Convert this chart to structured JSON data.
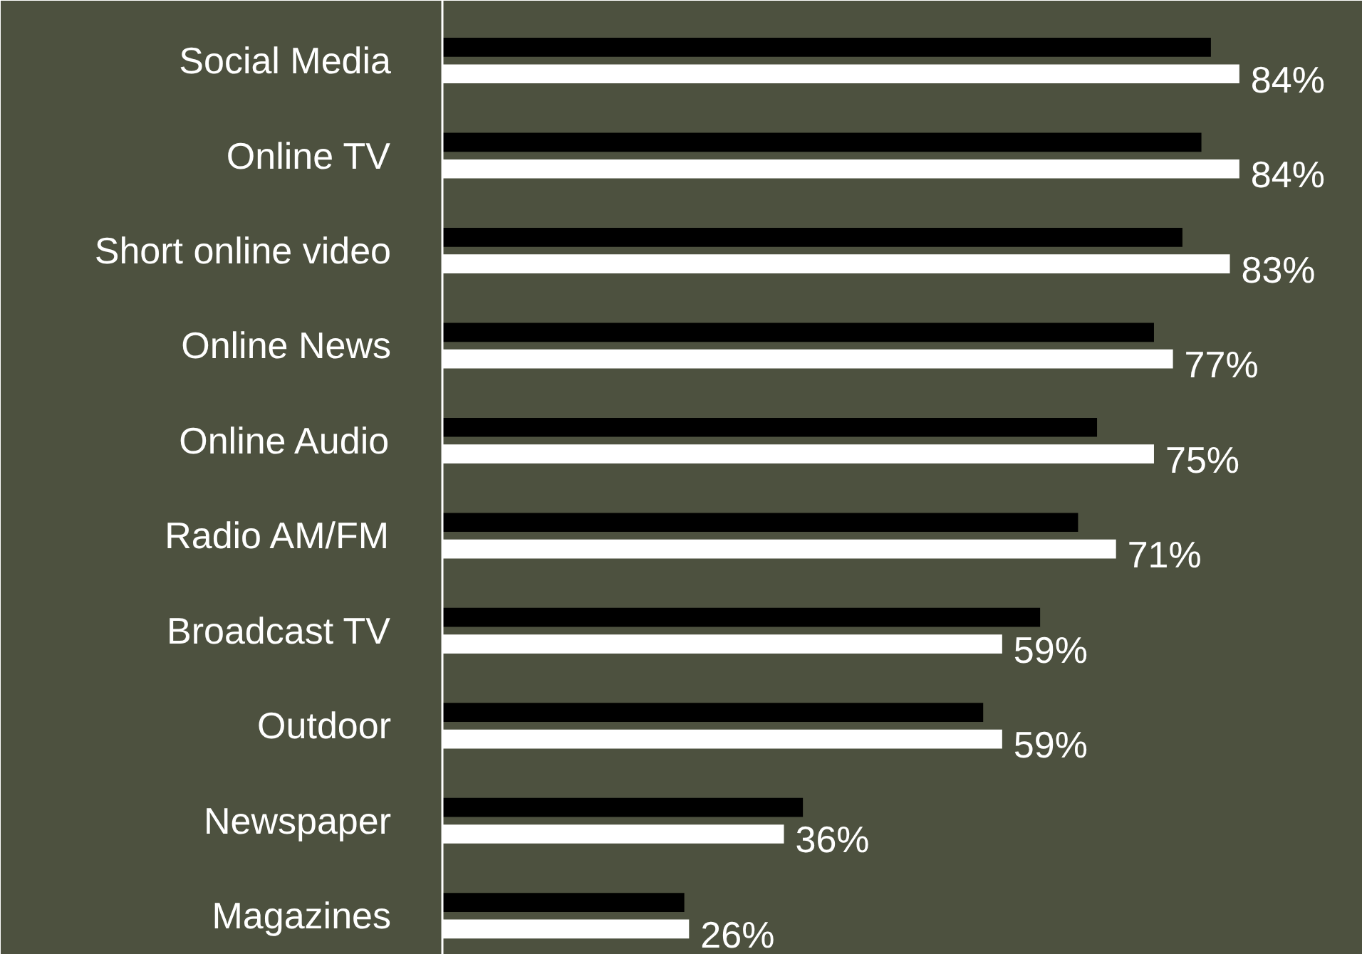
{
  "chart_data": {
    "type": "bar",
    "orientation": "horizontal",
    "categories": [
      "Social Media",
      "Online TV",
      "Short online video",
      "Online News",
      "Online Audio",
      "Radio AM/FM",
      "Broadcast TV",
      "Outdoor",
      "Newspaper",
      "Magazines"
    ],
    "series": [
      {
        "color": "#000000",
        "values": [
          81,
          80,
          78,
          75,
          69,
          67,
          63,
          57,
          38,
          25.5
        ]
      },
      {
        "color": "#ffffff",
        "values": [
          84,
          84,
          83,
          77,
          75,
          71,
          59,
          59,
          36,
          26
        ],
        "value_labels": [
          "84%",
          "84%",
          "83%",
          "77%",
          "75%",
          "71%",
          "59%",
          "59%",
          "36%",
          "26%"
        ]
      }
    ],
    "xlim": [
      0,
      97
    ],
    "tick_labels": "y",
    "grid": false
  }
}
